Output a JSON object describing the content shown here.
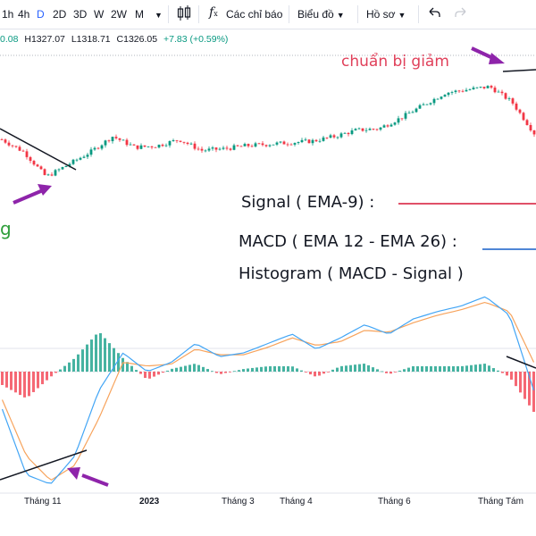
{
  "toolbar": {
    "intervals": [
      "1h",
      "4h",
      "D",
      "2D",
      "3D",
      "W",
      "2W",
      "M"
    ],
    "active_interval": "D",
    "indicators_label": "Các chỉ báo",
    "chart_type_label": "Biểu đồ",
    "profile_label": "Hồ sơ",
    "icons": [
      "candles-icon",
      "fx-icon",
      "undo-icon",
      "redo-icon"
    ]
  },
  "ohlc": {
    "open": "0.08",
    "high": "H1327.07",
    "low": "L1318.71",
    "close": "C1326.05",
    "change": "+7.83 (+0.59%)"
  },
  "annotations": {
    "sell_signal": "chuẩn bị giảm",
    "buy_signal_partial": "g",
    "signal_legend": "Signal ( EMA-9) :",
    "macd_legend": "MACD ( EMA 12 - EMA 26) :",
    "histogram_legend": "Histogram (  MACD - Signal )"
  },
  "colors": {
    "up": "#089981",
    "down": "#f23645",
    "signal": "#f7a35c",
    "macd": "#42a5f5",
    "sell_text": "#e0405a",
    "buy_text": "#2e9e3a",
    "arrow": "#8e24aa",
    "signal_legend_line": "#e05068",
    "macd_legend_line": "#4f86d6"
  },
  "chart_data": {
    "type": "candlestick",
    "time_labels": [
      "Tháng 11",
      "2023",
      "Tháng 3",
      "Tháng 4",
      "Tháng 6",
      "Tháng Tám"
    ],
    "price_close_approx": [
      1080,
      1040,
      960,
      1000,
      1040,
      1090,
      1055,
      1060,
      1080,
      1045,
      1050,
      1060,
      1065,
      1070,
      1075,
      1090,
      1110,
      1115,
      1150,
      1190,
      1230,
      1240,
      1250,
      1200,
      1100
    ],
    "last_close": 1326.05,
    "indicator": {
      "name": "MACD",
      "macd_period_fast": 12,
      "macd_period_slow": 26,
      "signal_period": 9,
      "macd_series_approx": [
        -20,
        -55,
        -60,
        -45,
        -10,
        10,
        0,
        5,
        15,
        8,
        10,
        15,
        20,
        12,
        18,
        25,
        20,
        28,
        32,
        35,
        40,
        30,
        -10
      ],
      "signal_series_approx": [
        -15,
        -45,
        -58,
        -50,
        -25,
        5,
        3,
        4,
        12,
        9,
        9,
        13,
        18,
        14,
        16,
        22,
        21,
        26,
        30,
        33,
        37,
        32,
        5
      ]
    }
  }
}
